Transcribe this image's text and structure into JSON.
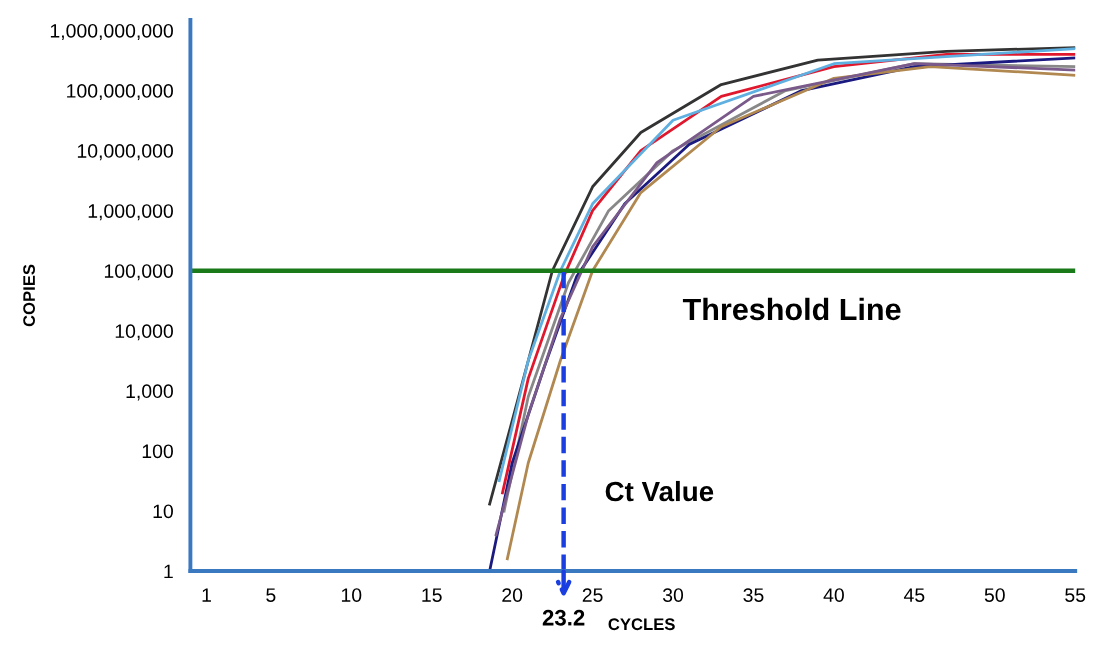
{
  "chart_data": {
    "type": "line",
    "xlabel": "CYCLES",
    "ylabel": "COPIES",
    "log": "y",
    "grid": false,
    "legend": false,
    "marker": "none",
    "line_style": "solid",
    "xlim": [
      0,
      55
    ],
    "xticks": [
      1,
      5,
      10,
      15,
      20,
      25,
      30,
      35,
      40,
      45,
      50,
      55
    ],
    "ylim": [
      1,
      1500000000
    ],
    "yticks": [
      1,
      10,
      100,
      {
        "value": 1000,
        "label": "1,000"
      },
      {
        "value": 10000,
        "label": "10,000"
      },
      {
        "value": 100000,
        "label": "100,000"
      },
      {
        "value": 1000000,
        "label": "1,000,000"
      },
      {
        "value": 10000000,
        "label": "10,000,000"
      },
      {
        "value": 100000000,
        "label": "100,000,000"
      },
      {
        "value": 1000000000,
        "label": "1,000,000,000"
      }
    ],
    "series": [
      {
        "color": "#333333",
        "x": [
          18.6,
          20,
          22.5,
          25,
          28,
          33,
          39,
          47,
          55
        ],
        "values": [
          13,
          316,
          100000,
          2500000,
          20000000,
          126000000,
          320000000,
          450000000,
          520000000
        ]
      },
      {
        "color": "#e0182d",
        "x": [
          19.4,
          21,
          23.2,
          25,
          28,
          33,
          40,
          47,
          55
        ],
        "values": [
          20,
          1600,
          79000,
          1000000,
          10000000,
          80000000,
          250000000,
          400000000,
          400000000
        ]
      },
      {
        "color": "#5fb0e0",
        "x": [
          19.2,
          21,
          23,
          25,
          30,
          40,
          55
        ],
        "values": [
          32,
          3200,
          100000,
          1300000,
          32000000,
          280000000,
          500000000
        ]
      },
      {
        "color": "#888888",
        "x": [
          19.5,
          21,
          23.5,
          26,
          30,
          37,
          45,
          55
        ],
        "values": [
          10,
          800,
          63000,
          1000000,
          10000000,
          100000000,
          280000000,
          250000000
        ]
      },
      {
        "color": "#1a1a80",
        "x": [
          18.6,
          20,
          22,
          24,
          27,
          31,
          38,
          45,
          55
        ],
        "values": [
          1,
          63,
          2500,
          79000,
          1300000,
          12600000,
          100000000,
          250000000,
          350000000
        ]
      },
      {
        "color": "#b08850",
        "x": [
          19.7,
          21,
          23,
          25,
          28,
          33,
          40,
          46,
          55
        ],
        "values": [
          1.6,
          63,
          3200,
          100000,
          2000000,
          25000000,
          160000000,
          250000000,
          180000000
        ]
      },
      {
        "color": "#7a5a8a",
        "x": [
          19,
          21,
          23,
          25,
          29,
          35,
          45,
          55
        ],
        "values": [
          4,
          400,
          16000,
          250000,
          6300000,
          80000000,
          280000000,
          220000000
        ]
      }
    ],
    "ref_lines": [
      {
        "axis": "y",
        "value": 100000,
        "label": "Threshold Line",
        "color": "#1a7a1a",
        "line_style": "solid"
      },
      {
        "axis": "x",
        "value": 23.2,
        "label": "23.2",
        "color": "#1a3ee0",
        "line_style": "dashed"
      }
    ],
    "annotations": [
      "Ct Value"
    ]
  }
}
